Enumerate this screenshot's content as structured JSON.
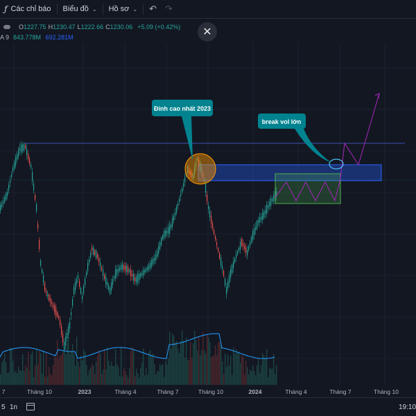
{
  "toolbar": {
    "indicators_label": "Các chỉ báo",
    "chart_label": "Biểu đồ",
    "profile_label": "Hồ sơ"
  },
  "legend": {
    "ohlc": [
      {
        "label": "O",
        "value": "1227.75"
      },
      {
        "label": "H",
        "value": "1230.47"
      },
      {
        "label": "L",
        "value": "1222.66"
      },
      {
        "label": "C",
        "value": "1230.06"
      }
    ],
    "change": "+5.09 (+0.42%)",
    "vol_label": "A 9",
    "vol_values": [
      "843.778M",
      "692.281M"
    ]
  },
  "annotations": {
    "peak_label": "Đỉnh cao nhất 2023",
    "break_label": "break vol lớn"
  },
  "x_axis": {
    "ticks": [
      "7",
      "Tháng 10",
      "2023",
      "Tháng 4",
      "Tháng 7",
      "Tháng 10",
      "2024",
      "Tháng 4",
      "Tháng 7",
      "Tháng 10"
    ]
  },
  "bottom_bar": {
    "range_5d": "5",
    "range_1m": "1n",
    "time": "19:10"
  },
  "colors": {
    "background": "#131722",
    "up": "#26a69a",
    "down": "#ef5350",
    "volume_ma": "#2196f3",
    "zone_blue": "#2962ff",
    "zone_green": "#4caf50",
    "projection": "#9c27b0",
    "label_bg": "#00838f",
    "resistance": "#3f51b5"
  }
}
